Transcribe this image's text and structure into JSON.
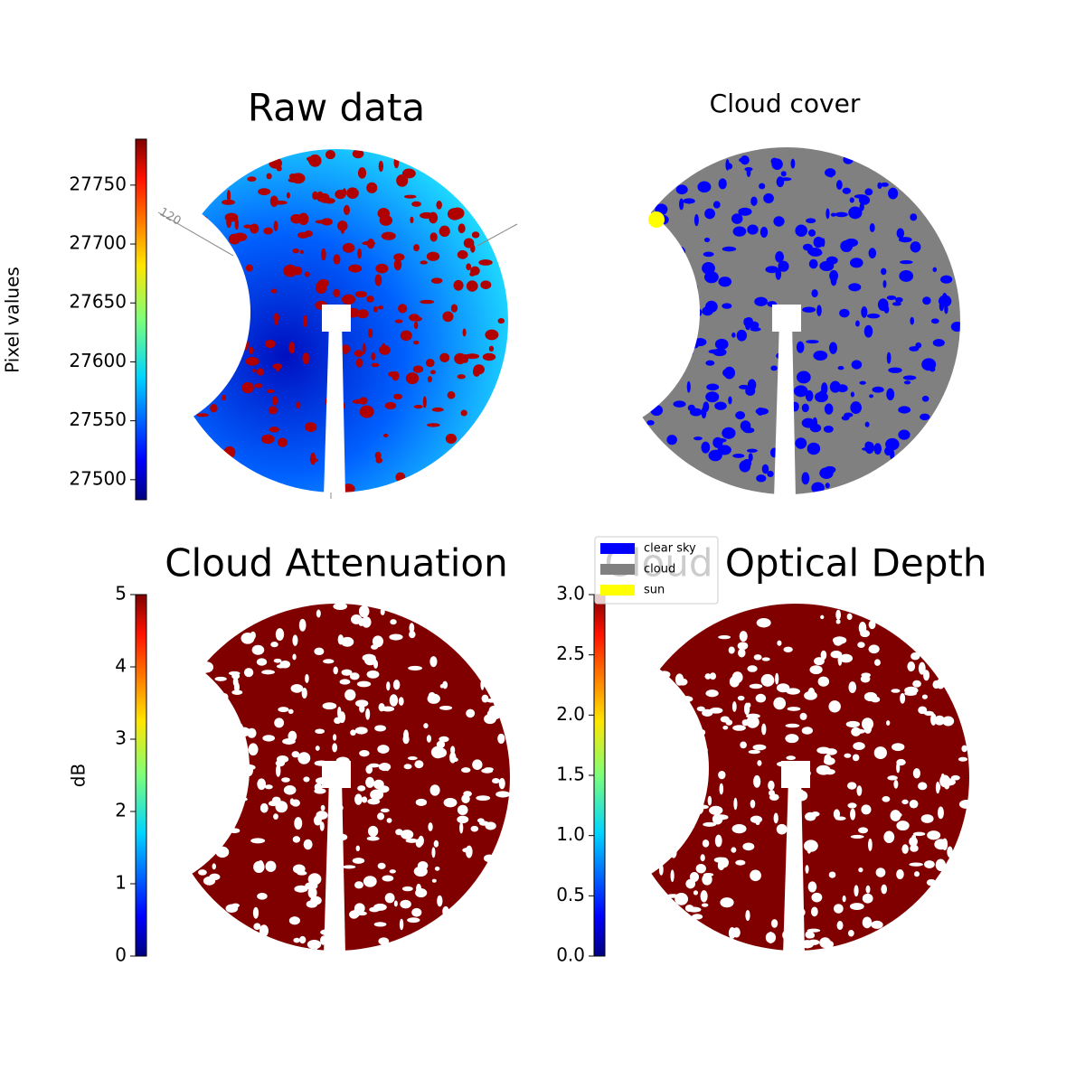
{
  "chart_data": [
    {
      "type": "image",
      "title": "Raw data",
      "colorbar_label": "Pixel values",
      "colormap": "jet",
      "clim": [
        27483,
        27789
      ],
      "cticks": [
        27500,
        27550,
        27600,
        27650,
        27700,
        27750
      ],
      "annotations": [
        "120"
      ]
    },
    {
      "type": "image",
      "title": "Cloud cover",
      "legend": [
        {
          "name": "clear sky",
          "color": "#0000ff"
        },
        {
          "name": "cloud",
          "color": "#808080"
        },
        {
          "name": "sun",
          "color": "#ffff00"
        }
      ]
    },
    {
      "type": "image",
      "title": "Cloud Attenuation",
      "colorbar_label": "dB",
      "colormap": "jet",
      "clim": [
        0,
        5
      ],
      "cticks": [
        0,
        1,
        2,
        3,
        4,
        5
      ]
    },
    {
      "type": "image",
      "title": "Cloud Optical Depth",
      "colormap": "jet",
      "clim": [
        0,
        3
      ],
      "cticks": [
        {
          "value": 0,
          "label": "0.0"
        },
        0.5,
        {
          "value": 1,
          "label": "1.0"
        },
        1.5,
        {
          "value": 2,
          "label": "2.0"
        },
        2.5,
        {
          "value": 3,
          "label": "3.0"
        }
      ]
    }
  ]
}
